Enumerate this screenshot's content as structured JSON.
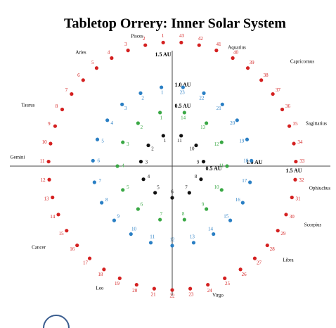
{
  "title": "Tabletop Orrery: Inner Solar System",
  "zodiac": [
    "Pisces",
    "Aquarius",
    "Aries",
    "Capricornus",
    "Taurus",
    "Sagittarius",
    "Gemini",
    "Ophiuchus",
    "Cancer",
    "Scorpius",
    "Libra",
    "Leo",
    "Virgo"
  ],
  "au_labels": [
    "1.5 AU",
    "1.0 AU",
    "0.5 AU",
    "0.5 AU",
    "1.0 AU",
    "1.5 AU"
  ],
  "rings": [
    {
      "color": "#d42020",
      "labels": [
        1,
        2,
        3,
        4,
        5,
        6,
        7,
        8,
        9,
        10,
        11,
        12,
        13,
        14,
        15,
        16,
        17,
        18,
        19,
        20,
        21,
        22,
        23,
        24,
        25,
        26,
        27,
        28,
        29,
        30,
        31,
        32,
        33,
        34,
        35,
        36,
        37,
        38,
        39,
        40,
        41,
        42,
        43
      ]
    },
    {
      "color": "#2a7fc4",
      "labels": [
        1,
        2,
        3,
        4,
        5,
        6,
        7,
        8,
        9,
        10,
        11,
        12,
        13,
        14,
        15,
        16,
        17,
        18,
        19,
        20,
        21,
        22,
        23
      ]
    },
    {
      "color": "#3aa845",
      "labels": [
        1,
        2,
        3,
        4,
        5,
        6,
        7,
        8,
        9,
        10,
        11,
        12,
        13,
        14
      ]
    },
    {
      "color": "#111111",
      "labels": [
        1,
        2,
        3,
        4,
        5,
        6,
        7,
        8,
        9,
        10,
        11
      ]
    }
  ]
}
